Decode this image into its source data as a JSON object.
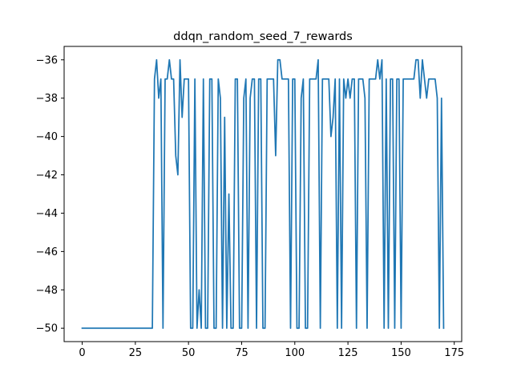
{
  "chart_data": {
    "type": "line",
    "title": "ddqn_random_seed_7_rewards",
    "xlabel": "",
    "ylabel": "",
    "xlim": [
      -8.5,
      178.5
    ],
    "ylim": [
      -50.7,
      -35.3
    ],
    "xticks": [
      0,
      25,
      50,
      75,
      100,
      125,
      150,
      175
    ],
    "yticks": [
      -50,
      -48,
      -46,
      -44,
      -42,
      -40,
      -38,
      -36
    ],
    "grid": false,
    "line_color": "#1f77b4",
    "series": [
      {
        "values": [
          -50,
          -50,
          -50,
          -50,
          -50,
          -50,
          -50,
          -50,
          -50,
          -50,
          -50,
          -50,
          -50,
          -50,
          -50,
          -50,
          -50,
          -50,
          -50,
          -50,
          -50,
          -50,
          -50,
          -50,
          -50,
          -50,
          -50,
          -50,
          -50,
          -50,
          -50,
          -50,
          -50,
          -50,
          -37,
          -36,
          -38,
          -37,
          -50,
          -37,
          -37,
          -36,
          -37,
          -37,
          -41,
          -42,
          -36,
          -39,
          -37,
          -37,
          -37,
          -50,
          -50,
          -37,
          -50,
          -48,
          -50,
          -37,
          -50,
          -50,
          -37,
          -37,
          -50,
          -50,
          -37,
          -38,
          -50,
          -39,
          -50,
          -43,
          -50,
          -50,
          -37,
          -37,
          -50,
          -50,
          -38,
          -37,
          -50,
          -38,
          -37,
          -37,
          -50,
          -37,
          -37,
          -50,
          -50,
          -37,
          -37,
          -37,
          -37,
          -41,
          -36,
          -36,
          -37,
          -37,
          -37,
          -37,
          -50,
          -37,
          -37,
          -50,
          -50,
          -38,
          -37,
          -50,
          -50,
          -37,
          -37,
          -37,
          -37,
          -36,
          -50,
          -37,
          -37,
          -37,
          -37,
          -40,
          -39,
          -37,
          -50,
          -37,
          -50,
          -37,
          -38,
          -37,
          -38,
          -37,
          -37,
          -50,
          -37,
          -37,
          -37,
          -38,
          -50,
          -37,
          -37,
          -37,
          -37,
          -36,
          -37,
          -36,
          -50,
          -37,
          -50,
          -37,
          -37,
          -50,
          -37,
          -37,
          -50,
          -37,
          -37,
          -37,
          -37,
          -37,
          -37,
          -36,
          -36,
          -38,
          -36,
          -37,
          -38,
          -37,
          -37,
          -37,
          -37,
          -38,
          -50,
          -38,
          -50
        ]
      }
    ]
  }
}
